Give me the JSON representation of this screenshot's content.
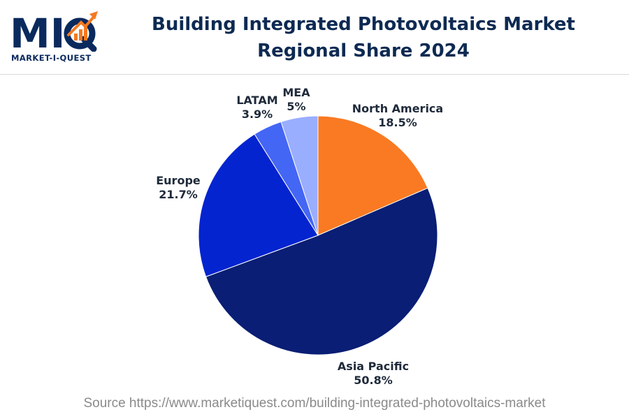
{
  "logo": {
    "wordmark": "MIQ",
    "tagline": "MARKET-I-QUEST",
    "colors": {
      "dark": "#0a2a5e",
      "accent": "#f47a20"
    }
  },
  "chart_data": {
    "type": "pie",
    "title": "Building Integrated Photovoltaics Market Regional Share 2024",
    "categories": [
      "North America",
      "Asia Pacific",
      "Europe",
      "LATAM",
      "MEA"
    ],
    "values": [
      18.5,
      50.8,
      21.7,
      3.9,
      5
    ],
    "value_labels": [
      "18.5%",
      "50.8%",
      "21.7%",
      "3.9%",
      "5%"
    ],
    "colors": [
      "#f97a22",
      "#091e74",
      "#0424cf",
      "#4466f5",
      "#9aaeff"
    ],
    "start_angle": "12 o'clock",
    "direction": "clockwise",
    "legend": "none"
  },
  "source": "Source https://www.marketiquest.com/building-integrated-photovoltaics-market"
}
